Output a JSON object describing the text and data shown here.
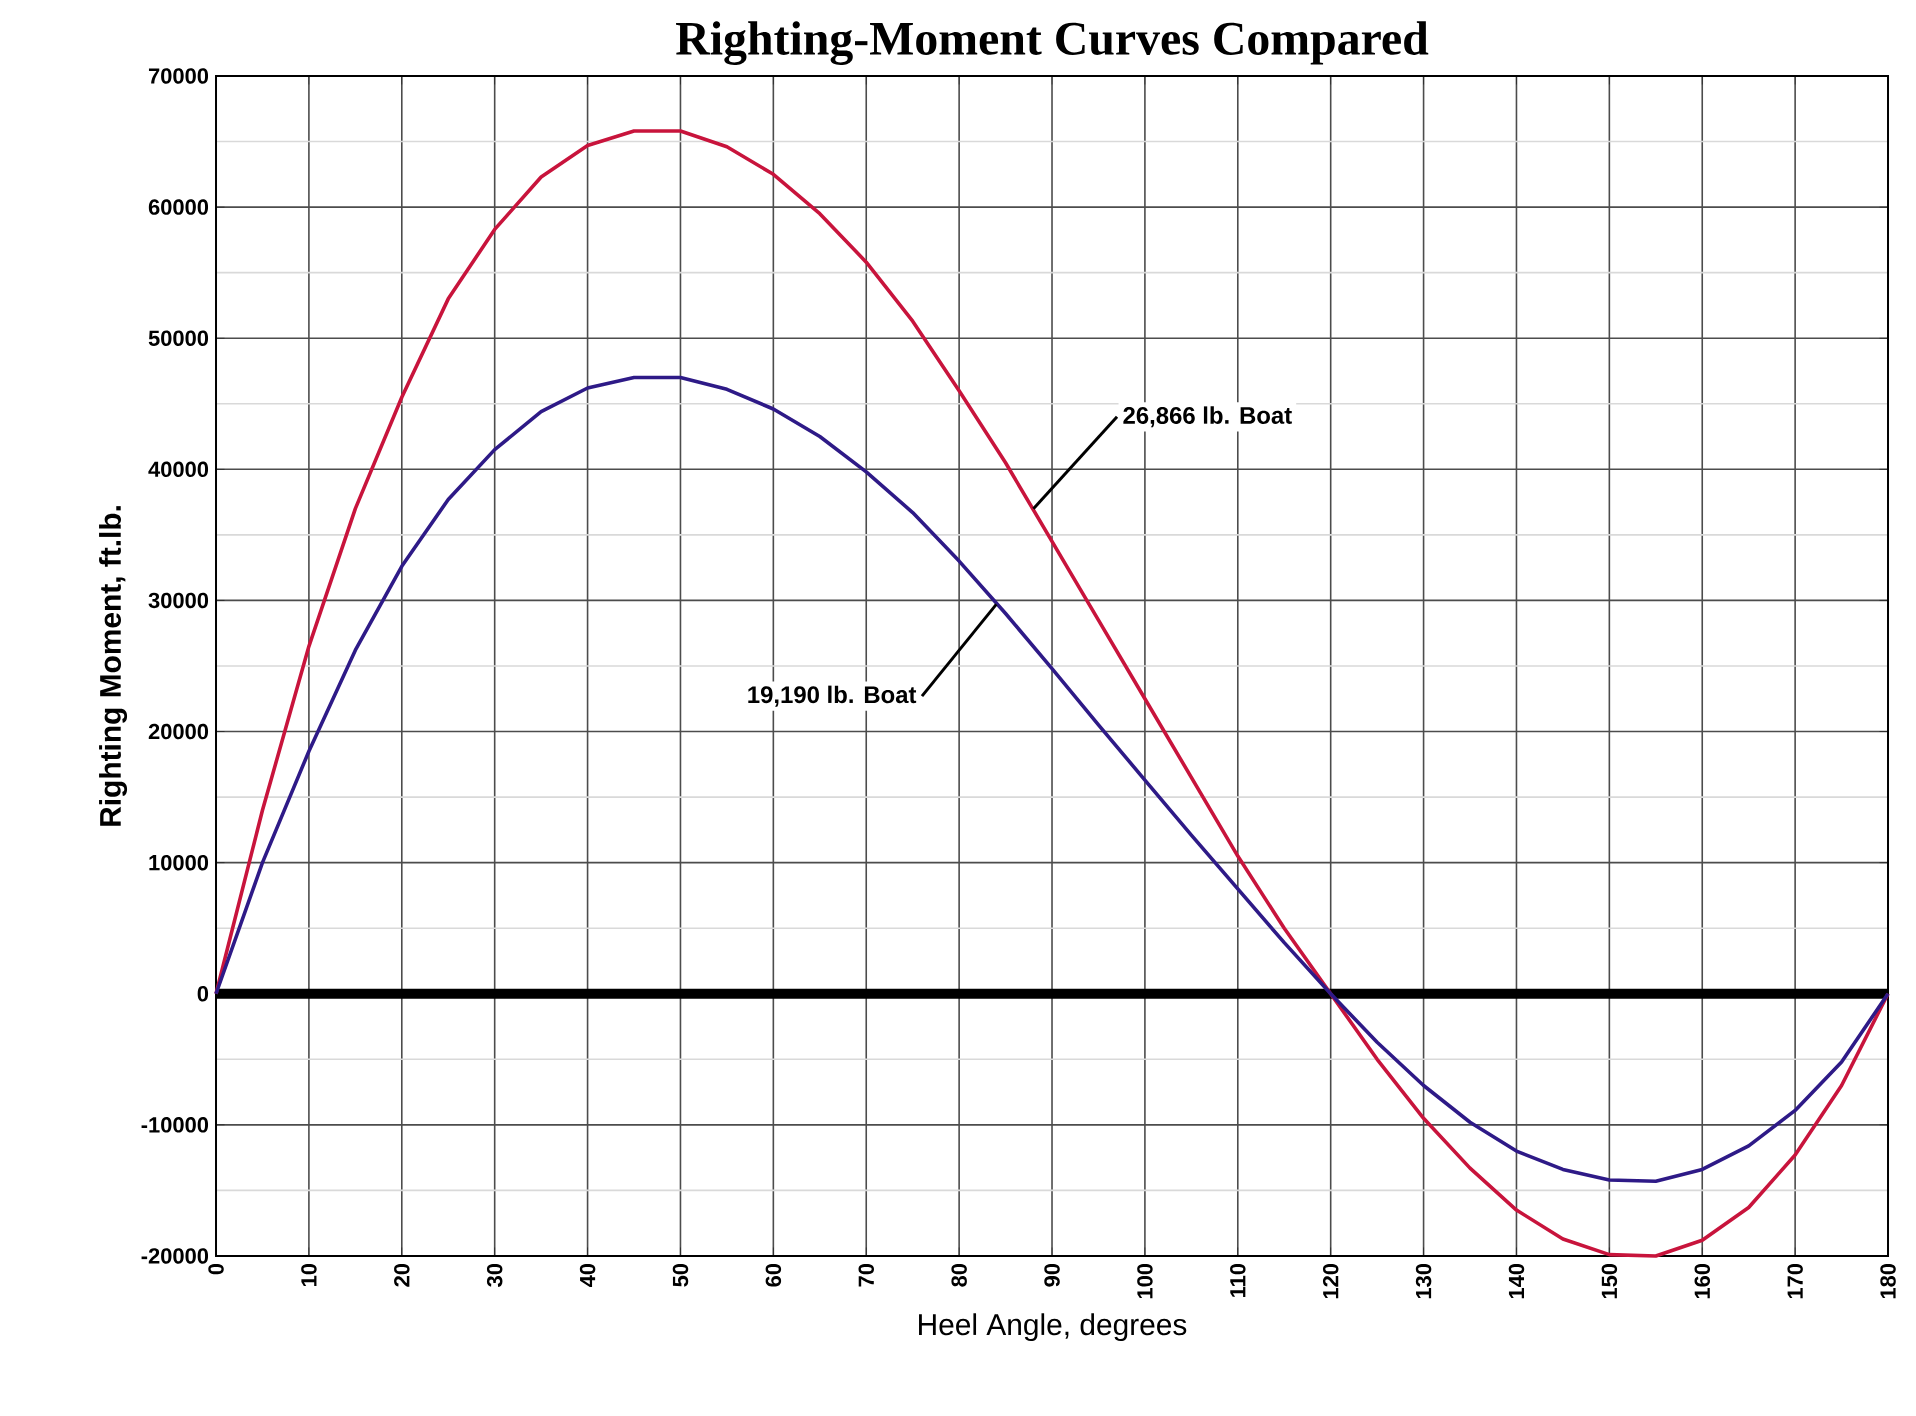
{
  "chart_data": {
    "type": "line",
    "title": "Righting-Moment Curves Compared",
    "xlabel": "Heel Angle, degrees",
    "ylabel": "Righting Moment, ft.lb.",
    "x": [
      0,
      5,
      10,
      15,
      20,
      25,
      30,
      35,
      40,
      45,
      50,
      55,
      60,
      65,
      70,
      75,
      80,
      85,
      90,
      95,
      100,
      105,
      110,
      115,
      120,
      125,
      130,
      135,
      140,
      145,
      150,
      155,
      160,
      165,
      170,
      175,
      180
    ],
    "series": [
      {
        "color": "#c8143c",
        "values": [
          0,
          14000,
          26500,
          37000,
          45500,
          53000,
          58300,
          62300,
          64700,
          65800,
          65800,
          64600,
          62500,
          59500,
          55800,
          51300,
          46000,
          40500,
          34500,
          28500,
          22500,
          16500,
          10500,
          5000,
          0,
          -5000,
          -9500,
          -13300,
          -16500,
          -18700,
          -19900,
          -20000,
          -18800,
          -16300,
          -12300,
          -7000,
          0
        ]
      },
      {
        "color": "#2e1a87",
        "values": [
          0,
          10000,
          18500,
          26200,
          32600,
          37700,
          41500,
          44400,
          46200,
          47000,
          47000,
          46100,
          44600,
          42500,
          39800,
          36700,
          33000,
          29000,
          24800,
          20500,
          16300,
          12100,
          8000,
          3900,
          0,
          -3700,
          -7000,
          -9800,
          -12000,
          -13400,
          -14200,
          -14300,
          -13400,
          -11600,
          -8900,
          -5200,
          0
        ]
      }
    ],
    "xlim": [
      0,
      180
    ],
    "xticks": [
      0,
      10,
      20,
      30,
      40,
      50,
      60,
      70,
      80,
      90,
      100,
      110,
      120,
      130,
      140,
      150,
      160,
      170,
      180
    ],
    "ylim": [
      -20000,
      70000
    ],
    "yticks": [
      -20000,
      -10000,
      0,
      10000,
      20000,
      30000,
      40000,
      50000,
      60000,
      70000
    ],
    "grid": true,
    "marker": "none",
    "line_style": "solid",
    "ref_lines": [
      {
        "axis": "y",
        "value": 0,
        "color": "#000000"
      }
    ],
    "annotations": [
      {
        "text": "26,866 lb. Boat",
        "x": 88,
        "y": 37000
      },
      {
        "text": "19,190 lb. Boat",
        "x": 84,
        "y": 29700
      }
    ]
  }
}
